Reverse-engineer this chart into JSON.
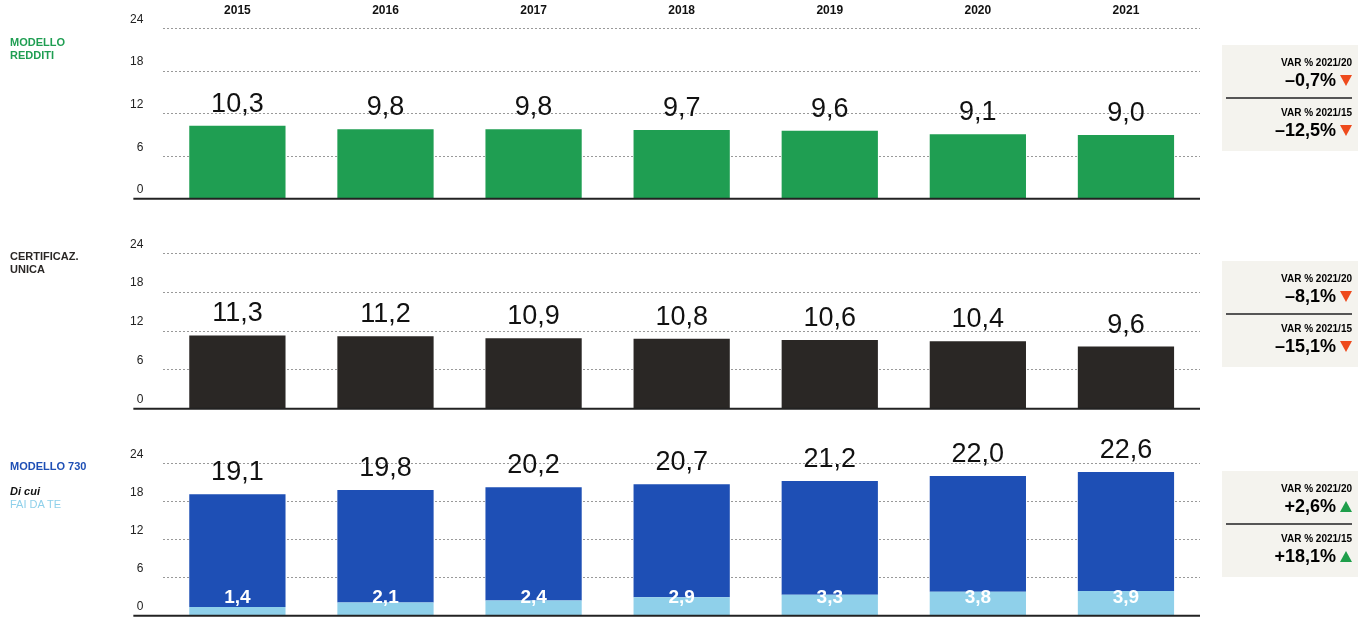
{
  "chart_data": [
    {
      "type": "bar",
      "title": "MODELLO REDDITI",
      "categories": [
        "2015",
        "2016",
        "2017",
        "2018",
        "2019",
        "2020",
        "2021"
      ],
      "series": [
        {
          "color": "#1f9e52",
          "values": [
            10.3,
            9.8,
            9.8,
            9.7,
            9.6,
            9.1,
            9.0
          ],
          "value_labels": [
            "10,3",
            "9,8",
            "9,8",
            "9,7",
            "9,6",
            "9,1",
            "9,0"
          ]
        }
      ],
      "ylim": [
        0,
        24
      ],
      "yticks": [
        0,
        6,
        12,
        18,
        24
      ],
      "grid": "y",
      "annotations": [
        "VAR % 2021/20",
        "–0,7%",
        "VAR % 2021/15",
        "–12,5%"
      ]
    },
    {
      "type": "bar",
      "title": "CERTIFICAZ. UNICA",
      "categories": [
        "2015",
        "2016",
        "2017",
        "2018",
        "2019",
        "2020",
        "2021"
      ],
      "series": [
        {
          "color": "#2a2725",
          "values": [
            11.3,
            11.2,
            10.9,
            10.8,
            10.6,
            10.4,
            9.6
          ],
          "value_labels": [
            "11,3",
            "11,2",
            "10,9",
            "10,8",
            "10,6",
            "10,4",
            "9,6"
          ]
        }
      ],
      "ylim": [
        0,
        24
      ],
      "yticks": [
        0,
        6,
        12,
        18,
        24
      ],
      "grid": "y",
      "tick_labels": "y",
      "annotations": [
        "VAR % 2021/20",
        "–8,1%",
        "VAR % 2021/15",
        "–15,1%"
      ]
    },
    {
      "type": "bar",
      "title": "MODELLO 730",
      "categories": [
        "2015",
        "2016",
        "2017",
        "2018",
        "2019",
        "2020",
        "2021"
      ],
      "legend_title": "Di cui",
      "legend": "left",
      "stacked": true,
      "series": [
        {
          "name": "FAI DA TE",
          "color": "#8fd0ea",
          "values": [
            1.4,
            2.1,
            2.4,
            2.9,
            3.3,
            3.8,
            3.9
          ],
          "value_labels": [
            "1,4",
            "2,1",
            "2,4",
            "2,9",
            "3,3",
            "3,8",
            "3,9"
          ]
        },
        {
          "color": "#1e4fb5",
          "values": [
            17.7,
            17.7,
            17.8,
            17.8,
            17.9,
            18.2,
            18.7
          ]
        }
      ],
      "totals": [
        "19,1",
        "19,8",
        "20,2",
        "20,7",
        "21,2",
        "22,0",
        "22,6"
      ],
      "ylim": [
        0,
        24
      ],
      "yticks": [
        0,
        6,
        12,
        18,
        24
      ],
      "grid": "y",
      "tick_labels": "y",
      "annotations": [
        "VAR % 2021/20",
        "+2,6%",
        "VAR % 2021/15",
        "+18,1%"
      ]
    }
  ]
}
